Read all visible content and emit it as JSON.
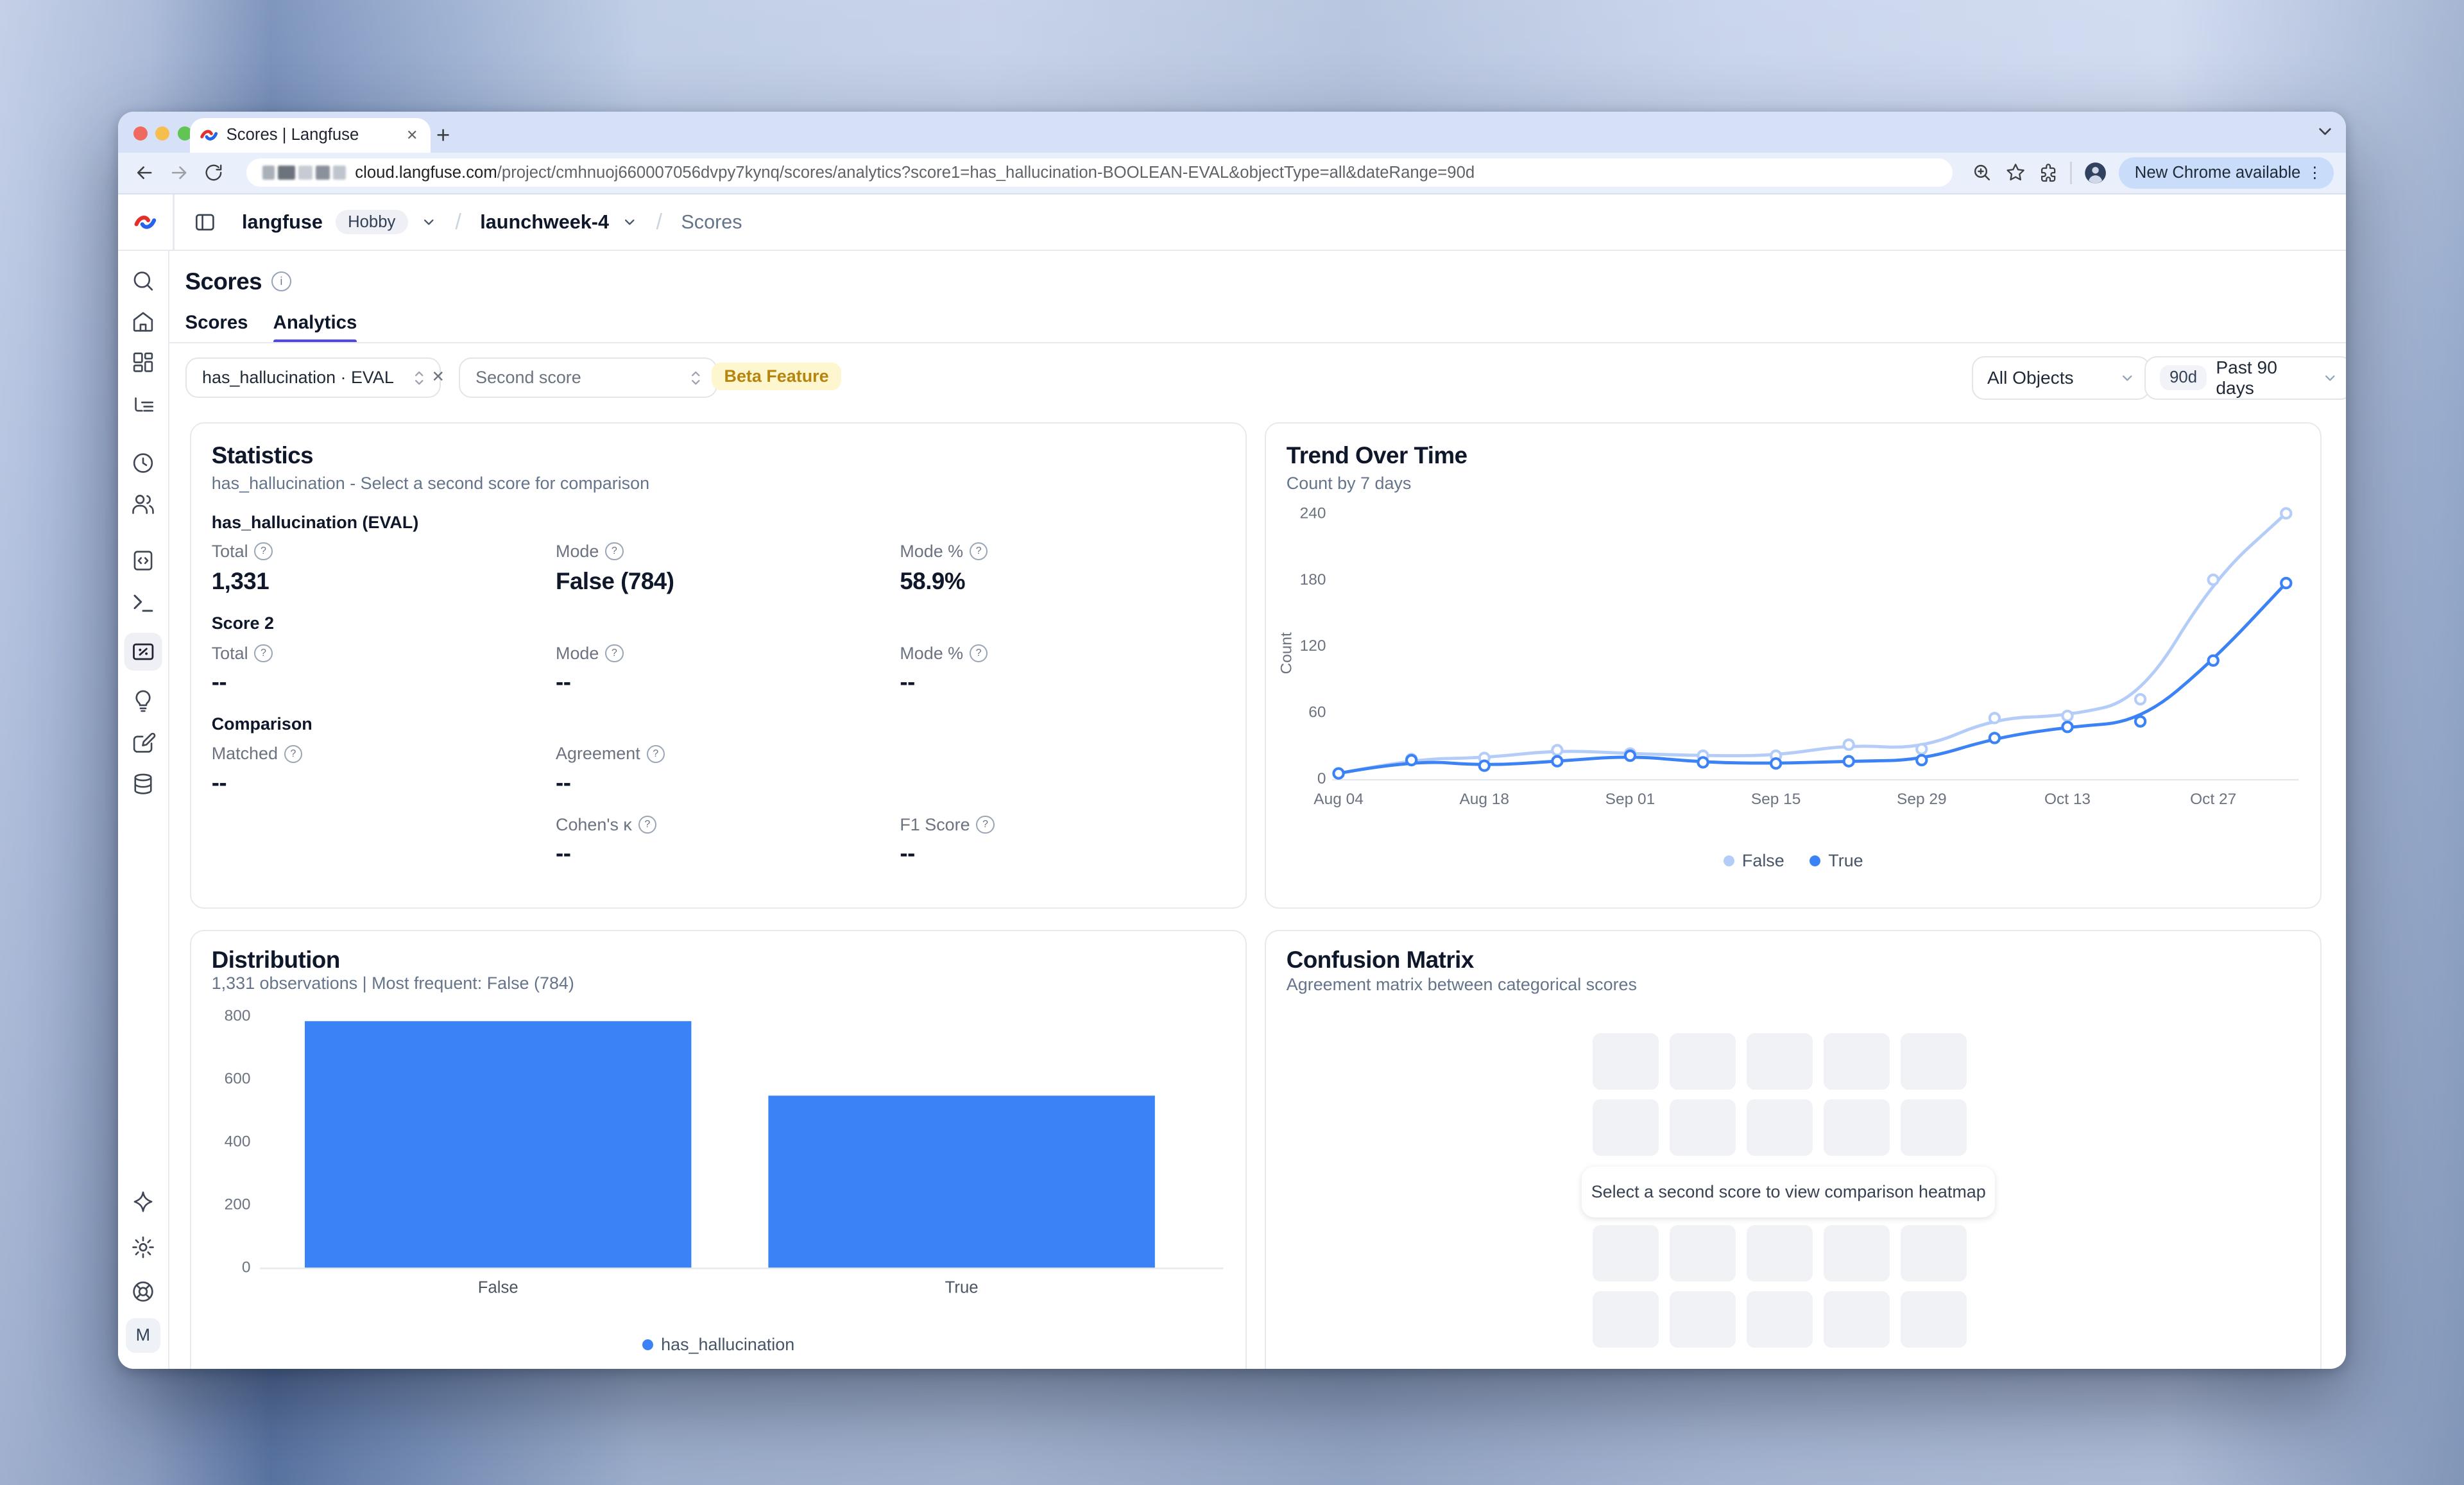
{
  "browser": {
    "tab_title": "Scores | Langfuse",
    "url_domain": "cloud.langfuse.com",
    "url_path": "/project/cmhnuoj660007056dvpy7kynq/scores/analytics?score1=has_hallucination-BOOLEAN-EVAL&objectType=all&dateRange=90d",
    "new_chrome_label": "New Chrome available"
  },
  "icons": {
    "help": "?",
    "info": "i",
    "close_tab": "✕",
    "new_tab": "+",
    "kebab": "⋮",
    "slash": "/",
    "clear_filter": "✕",
    "avatar_initial": "M"
  },
  "breadcrumb": {
    "org": "langfuse",
    "plan": "Hobby",
    "project": "launchweek-4",
    "page": "Scores"
  },
  "sidebar": {
    "icons": [
      "search",
      "home",
      "dashboards",
      "tracing",
      "sessions",
      "users",
      "prompts",
      "playground",
      "evaluation",
      "insights",
      "annotation",
      "datasets"
    ],
    "bottom_icons": [
      "sparkle",
      "settings",
      "support"
    ],
    "active": "evaluation"
  },
  "page": {
    "title": "Scores",
    "tabs": [
      {
        "label": "Scores"
      },
      {
        "label": "Analytics"
      }
    ],
    "active_tab": "Analytics"
  },
  "filters": {
    "score1": "has_hallucination · EVAL",
    "second_score_placeholder": "Second score",
    "beta_badge": "Beta Feature",
    "objects": "All Objects",
    "date_shortcut": "90d",
    "date_range": "Past 90 days"
  },
  "statistics": {
    "title": "Statistics",
    "subtitle": "has_hallucination - Select a second score for comparison",
    "score1_heading": "has_hallucination (EVAL)",
    "score1": {
      "total_label": "Total",
      "total": "1,331",
      "mode_label": "Mode",
      "mode": "False (784)",
      "mode_pct_label": "Mode %",
      "mode_pct": "58.9%"
    },
    "score2_heading": "Score 2",
    "score2": {
      "total_label": "Total",
      "total": "--",
      "mode_label": "Mode",
      "mode": "--",
      "mode_pct_label": "Mode %",
      "mode_pct": "--"
    },
    "comparison_heading": "Comparison",
    "comparison": {
      "matched_label": "Matched",
      "matched": "--",
      "agreement_label": "Agreement",
      "agreement": "--",
      "cohens_label": "Cohen's κ",
      "cohens": "--",
      "f1_label": "F1 Score",
      "f1": "--"
    }
  },
  "trend_panel": {
    "title": "Trend Over Time",
    "subtitle": "Count by 7 days"
  },
  "distribution_panel": {
    "title": "Distribution",
    "subtitle": "1,331 observations | Most frequent: False (784)"
  },
  "confusion": {
    "title": "Confusion Matrix",
    "subtitle": "Agreement matrix between categorical scores",
    "message": "Select a second score to view comparison heatmap",
    "grid_rows": 4,
    "grid_cols": 5
  },
  "colors": {
    "accent": "#4f46e5",
    "series_false": "#b3cdf8",
    "series_true": "#3b82f6",
    "bar": "#3b82f6"
  },
  "chart_data": [
    {
      "id": "trend",
      "type": "line",
      "title": "Trend Over Time",
      "ylabel": "Count",
      "x": [
        "Aug 04",
        "Aug 11",
        "Aug 18",
        "Aug 25",
        "Sep 01",
        "Sep 08",
        "Sep 15",
        "Sep 22",
        "Sep 29",
        "Oct 06",
        "Oct 13",
        "Oct 20",
        "Oct 27",
        "Nov 03"
      ],
      "x_tick_labels": [
        "Aug 04",
        "Aug 18",
        "Sep 01",
        "Sep 15",
        "Sep 29",
        "Oct 13",
        "Oct 27"
      ],
      "series": [
        {
          "name": "False",
          "color": "#b3cdf8",
          "values": [
            5,
            18,
            19,
            26,
            23,
            21,
            21,
            31,
            27,
            55,
            57,
            72,
            180,
            240
          ]
        },
        {
          "name": "True",
          "color": "#3b82f6",
          "values": [
            5,
            17,
            12,
            16,
            21,
            15,
            14,
            16,
            17,
            37,
            47,
            52,
            107,
            177
          ]
        }
      ],
      "ylim": [
        0,
        240
      ],
      "yticks": [
        0,
        60,
        120,
        180,
        240
      ],
      "grid": false,
      "legend_position": "bottom"
    },
    {
      "id": "distribution",
      "type": "bar",
      "categories": [
        "False",
        "True"
      ],
      "values": [
        784,
        547
      ],
      "series_name": "has_hallucination",
      "color": "#3b82f6",
      "ylim": [
        0,
        800
      ],
      "yticks": [
        0,
        200,
        400,
        600,
        800
      ],
      "grid": false,
      "legend_position": "bottom"
    }
  ]
}
